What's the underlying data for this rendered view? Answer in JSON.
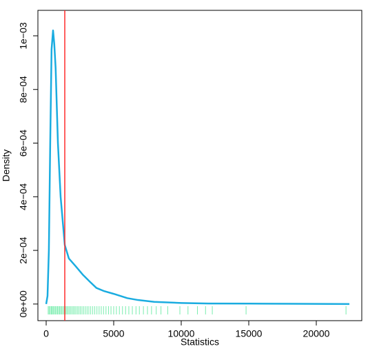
{
  "chart_data": {
    "type": "density",
    "x_label": "Statistics",
    "y_label": "Density",
    "x": [
      0,
      100,
      200,
      300,
      400,
      510,
      600,
      700,
      870,
      1070,
      1378,
      1680,
      2200,
      2700,
      3200,
      3720,
      4300,
      5000,
      6000,
      6790,
      8000,
      10000,
      12000,
      15000,
      18000,
      22450
    ],
    "values": [
      0,
      3e-05,
      0.0002,
      0.0006,
      0.00095,
      0.00102,
      0.00097,
      0.00088,
      0.0006,
      0.0004,
      0.00022,
      0.00017,
      0.00014,
      0.00011,
      8.5e-05,
      6e-05,
      4.8e-05,
      3.8e-05,
      2.2e-05,
      1.5e-05,
      8e-06,
      4e-06,
      2e-06,
      1.5e-06,
      1e-06,
      0
    ],
    "color": "#1aace0",
    "rug": [
      150,
      220,
      300,
      380,
      450,
      520,
      600,
      680,
      760,
      840,
      920,
      1000,
      1080,
      1160,
      1250,
      1340,
      1430,
      1520,
      1610,
      1700,
      1800,
      1900,
      2000,
      2100,
      2200,
      2310,
      2420,
      2530,
      2650,
      2770,
      2900,
      3030,
      3160,
      3300,
      3450,
      3600,
      3760,
      3920,
      4080,
      4250,
      4430,
      4620,
      4800,
      5000,
      5200,
      5420,
      5650,
      5880,
      6120,
      6380,
      6650,
      6900,
      7200,
      7500,
      7800,
      8150,
      8500,
      9000,
      9900,
      10500,
      11200,
      11800,
      12300,
      14800,
      22200
    ],
    "rug_color": "#57e89a",
    "vline": 1378,
    "vline_color": "#ff2a2a",
    "xlim": [
      -612,
      23367
    ],
    "ylim": [
      -6.2e-05,
      0.001095
    ],
    "xticks": [
      0,
      5000,
      10000,
      15000,
      20000
    ],
    "yticks": [
      {
        "value": 0,
        "label": "0e+00"
      },
      {
        "value": 0.0002,
        "label": "2e−04"
      },
      {
        "value": 0.0004,
        "label": "4e−04"
      },
      {
        "value": 0.0006,
        "label": "6e−04"
      },
      {
        "value": 0.0008,
        "label": "8e−04"
      },
      {
        "value": 0.001,
        "label": "1e−03"
      }
    ]
  }
}
